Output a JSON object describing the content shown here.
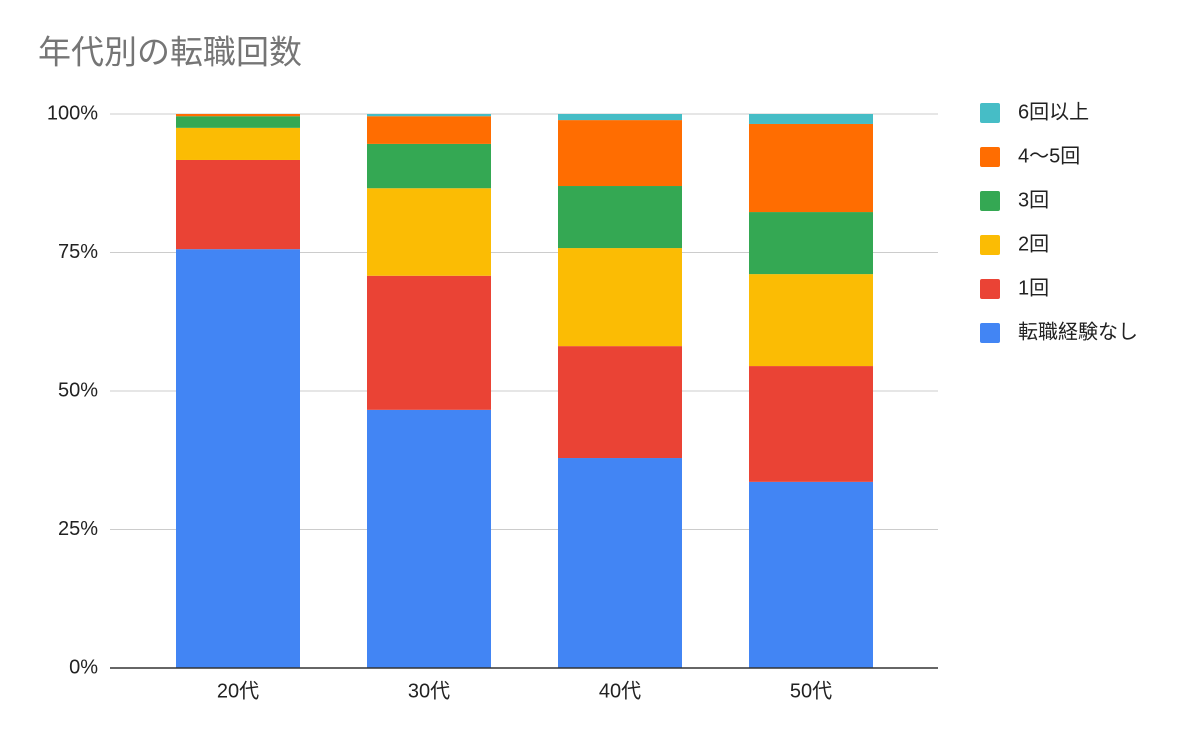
{
  "chart_data": {
    "type": "stacked_bar",
    "title": "年代別の転職回数",
    "categories": [
      "20代",
      "30代",
      "40代",
      "50代"
    ],
    "series": [
      {
        "name": "転職経験なし",
        "color": "#4285f4",
        "values": [
          75.6,
          46.6,
          37.9,
          33.6
        ]
      },
      {
        "name": "1回",
        "color": "#ea4335",
        "values": [
          16.1,
          24.2,
          20.2,
          20.9
        ]
      },
      {
        "name": "2回",
        "color": "#fbbc04",
        "values": [
          5.8,
          15.8,
          17.7,
          16.6
        ]
      },
      {
        "name": "3回",
        "color": "#34a853",
        "values": [
          2.1,
          8.0,
          11.2,
          11.2
        ]
      },
      {
        "name": "4〜5回",
        "color": "#ff6d01",
        "values": [
          0.4,
          5.0,
          11.9,
          15.9
        ]
      },
      {
        "name": "6回以上",
        "color": "#46bdc6",
        "values": [
          0,
          0.4,
          1.1,
          1.8
        ]
      }
    ],
    "ylim": [
      0,
      100
    ],
    "yticks": [
      {
        "value": 0,
        "label": "0%"
      },
      {
        "value": 25,
        "label": "25%"
      },
      {
        "value": 50,
        "label": "50%"
      },
      {
        "value": 75,
        "label": "75%"
      },
      {
        "value": 100,
        "label": "100%"
      }
    ],
    "grid": true,
    "legend": "right"
  }
}
